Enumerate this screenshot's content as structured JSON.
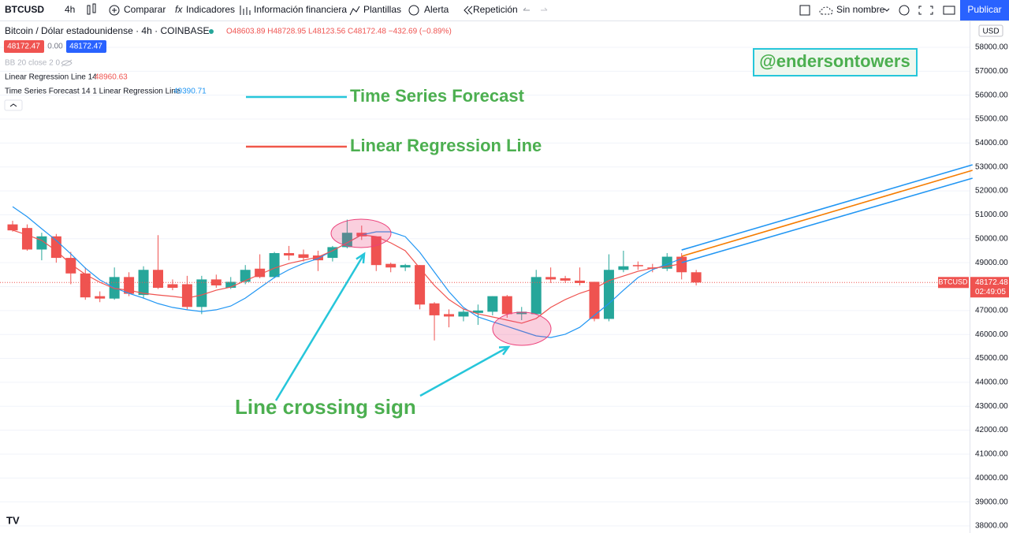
{
  "toolbar": {
    "symbol": "BTCUSD",
    "interval": "4h",
    "items": [
      "Comparar",
      "Indicadores",
      "Información financiera",
      "Plantillas",
      "Alerta",
      "Repetición"
    ],
    "layout_name": "Sin nombre",
    "publish": "Publicar"
  },
  "legend": {
    "title": "Bitcoin / Dólar estadounidense · 4h · COINBASE",
    "ohlc": "O48603.89 H48728.95 L48123.56 C48172.48 −432.69 (−0.89%)",
    "bid": "48172.47",
    "spread": "0.00",
    "ask": "48172.47",
    "indicators": [
      {
        "name": "BB 20 close 2 0"
      },
      {
        "name": "Linear Regression Line 14",
        "value": "48960.63"
      },
      {
        "name": "Time Series Forecast 14 1 Linear Regression Line",
        "value": "49390.71"
      }
    ]
  },
  "chart_data": {
    "type": "candlestick",
    "currency": "USD",
    "up_color": "#26a69a",
    "down_color": "#ef5350",
    "open": [
      50600,
      50450,
      49550,
      50100,
      49200,
      48550,
      47600,
      47500,
      48400,
      47650,
      48700,
      48100,
      48100,
      47150,
      48300,
      47950,
      48200,
      48750,
      48400,
      49400,
      49350,
      49300,
      49200,
      49650,
      50250,
      50100,
      48950,
      48800,
      48900,
      47300,
      46850,
      46750,
      46900,
      46950,
      47600,
      46850,
      46850,
      48400,
      48350,
      48250,
      48200,
      46650,
      48700,
      48900,
      48800,
      48750,
      49250,
      48600
    ],
    "high": [
      50750,
      50600,
      50250,
      50200,
      49450,
      48800,
      47800,
      48800,
      48600,
      48850,
      50150,
      48300,
      48450,
      48450,
      48500,
      48400,
      48900,
      49350,
      49450,
      49700,
      49550,
      49500,
      49700,
      50800,
      50550,
      50100,
      49000,
      48950,
      48900,
      47350,
      47050,
      47050,
      47250,
      47600,
      47650,
      47150,
      48700,
      48800,
      48450,
      48800,
      48200,
      49350,
      49500,
      49050,
      48950,
      49400,
      49400,
      48700
    ],
    "low": [
      50300,
      49500,
      49100,
      49000,
      48100,
      47450,
      47350,
      47450,
      47600,
      47500,
      47900,
      47850,
      47050,
      46850,
      47950,
      47900,
      48100,
      48350,
      48350,
      49100,
      49050,
      48650,
      49050,
      49600,
      49950,
      48650,
      48600,
      48650,
      47050,
      45750,
      46300,
      46550,
      46400,
      46800,
      46700,
      46600,
      46850,
      48150,
      48150,
      48050,
      46550,
      46550,
      48600,
      48700,
      48600,
      48650,
      48300,
      48050
    ],
    "close": [
      50350,
      49550,
      50100,
      49200,
      48550,
      47550,
      47500,
      48400,
      47700,
      48700,
      47950,
      47950,
      47150,
      48300,
      48050,
      48200,
      48700,
      48400,
      49400,
      49300,
      49200,
      49100,
      49650,
      50250,
      50100,
      48900,
      48800,
      48900,
      47250,
      46800,
      46750,
      46950,
      47000,
      47600,
      46850,
      46950,
      48400,
      48300,
      48250,
      48150,
      46650,
      48700,
      48850,
      48850,
      48750,
      49250,
      48600,
      48172.48
    ],
    "series": [
      {
        "name": "Time Series Forecast",
        "color": "#2196f3",
        "values": [
          51340,
          50920,
          50420,
          49930,
          49370,
          48770,
          48280,
          47950,
          47720,
          47520,
          47290,
          47130,
          47030,
          46960,
          47030,
          47190,
          47520,
          47950,
          48380,
          48710,
          48970,
          49170,
          49500,
          49830,
          50160,
          50290,
          50290,
          50090,
          49430,
          48610,
          47790,
          47130,
          46730,
          46530,
          46340,
          46140,
          45940,
          45870,
          46010,
          46300,
          46800,
          47290,
          47850,
          48380,
          48710,
          48940,
          49170,
          null
        ]
      },
      {
        "name": "Linear Regression Line",
        "color": "#ef5350",
        "values": [
          50360,
          50160,
          49930,
          49500,
          48940,
          48510,
          48180,
          47920,
          47850,
          47720,
          47650,
          47590,
          47520,
          47650,
          47850,
          47980,
          48250,
          48510,
          48770,
          48970,
          49100,
          49240,
          49500,
          49830,
          50160,
          50090,
          49830,
          49500,
          48770,
          48050,
          47460,
          47060,
          46860,
          46730,
          46600,
          46470,
          46670,
          47130,
          47460,
          47720,
          47920,
          48250,
          48440,
          48640,
          48770,
          48840,
          48960,
          null
        ]
      }
    ],
    "forecast_channel": {
      "x": [
        46,
        66
      ],
      "upper": [
        49530,
        53090
      ],
      "middle": [
        49270,
        52860
      ],
      "lower": [
        49000,
        52530
      ],
      "band_color": "#2196f3",
      "middle_color": "#f57c00"
    },
    "last_price": 48172.48,
    "last_price_symbol": "BTCUSD",
    "countdown": "02:49:05",
    "ylim": [
      38000,
      58000
    ],
    "yticks": [
      {
        "value": 38000,
        "label": "38000.00"
      },
      {
        "value": 39000,
        "label": "39000.00"
      },
      {
        "value": 40000,
        "label": "40000.00"
      },
      {
        "value": 41000,
        "label": "41000.00"
      },
      {
        "value": 42000,
        "label": "42000.00"
      },
      {
        "value": 43000,
        "label": "43000.00"
      },
      {
        "value": 44000,
        "label": "44000.00"
      },
      {
        "value": 45000,
        "label": "45000.00"
      },
      {
        "value": 46000,
        "label": "46000.00"
      },
      {
        "value": 47000,
        "label": "47000.00"
      },
      {
        "value": 48000,
        "label": "48000.00"
      },
      {
        "value": 49000,
        "label": "49000.00"
      },
      {
        "value": 50000,
        "label": "50000.00"
      },
      {
        "value": 51000,
        "label": "51000.00"
      },
      {
        "value": 52000,
        "label": "52000.00"
      },
      {
        "value": 53000,
        "label": "53000.00"
      },
      {
        "value": 54000,
        "label": "54000.00"
      },
      {
        "value": 55000,
        "label": "55000.00"
      },
      {
        "value": 56000,
        "label": "56000.00"
      },
      {
        "value": 57000,
        "label": "57000.00"
      },
      {
        "value": 58000,
        "label": "58000.00"
      }
    ],
    "grid": true,
    "annotation_text": "Line crossing sign",
    "annotation_color": "#4caf50",
    "arrow_color": "#26c6da",
    "watermark": "@endersontowers"
  }
}
